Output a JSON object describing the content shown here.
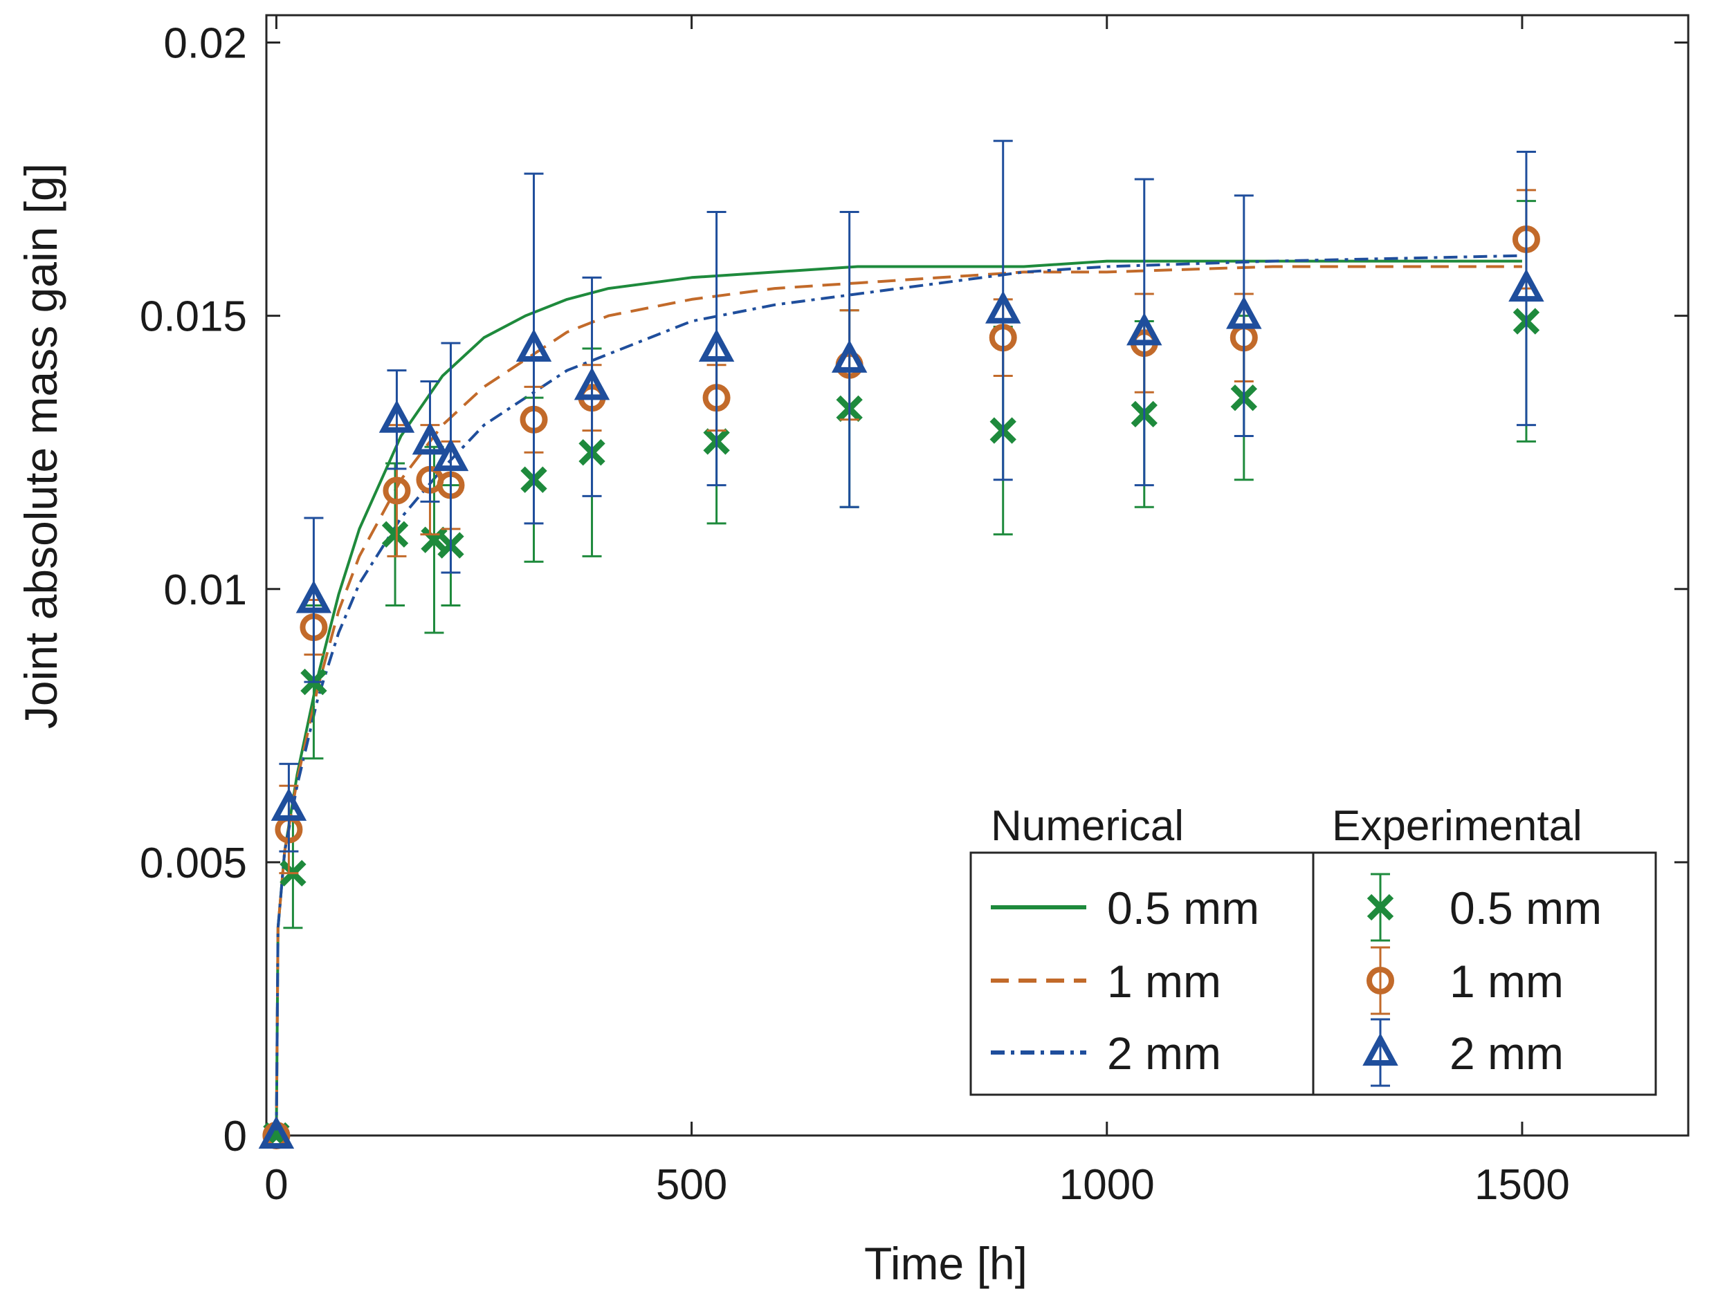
{
  "chart_data": {
    "type": "line",
    "title": "",
    "xlabel": "Time [h]",
    "ylabel": "Joint absolute mass gain [g]",
    "xlim": [
      -12,
      1700
    ],
    "ylim": [
      0,
      0.0205
    ],
    "xticks": [
      0,
      500,
      1000,
      1500
    ],
    "xtick_labels": [
      "0",
      "500",
      "1000",
      "1500"
    ],
    "yticks": [
      0,
      0.005,
      0.01,
      0.015,
      0.02
    ],
    "ytick_labels": [
      "0",
      "0.005",
      "0.01",
      "0.015",
      "0.02"
    ],
    "grid": false,
    "legend": {
      "placement": "bottom-right",
      "numerical_heading": "Numerical",
      "experimental_heading": "Experimental"
    },
    "numerical_series": [
      {
        "name": "0.5 mm",
        "color": "#1e8a3c",
        "dash": "solid",
        "x": [
          0,
          2,
          10,
          25,
          50,
          75,
          100,
          150,
          200,
          250,
          300,
          350,
          400,
          500,
          600,
          700,
          800,
          900,
          1000,
          1200,
          1500
        ],
        "y": [
          0,
          0.0038,
          0.0052,
          0.0066,
          0.0084,
          0.0099,
          0.0111,
          0.0128,
          0.0139,
          0.0146,
          0.015,
          0.0153,
          0.0155,
          0.0157,
          0.0158,
          0.0159,
          0.0159,
          0.0159,
          0.016,
          0.016,
          0.016
        ]
      },
      {
        "name": "1 mm",
        "color": "#c26a2a",
        "dash": "dashed",
        "x": [
          0,
          2,
          10,
          25,
          50,
          75,
          100,
          150,
          200,
          250,
          300,
          350,
          400,
          500,
          600,
          700,
          800,
          900,
          1000,
          1200,
          1500
        ],
        "y": [
          0,
          0.0038,
          0.0052,
          0.0065,
          0.0082,
          0.0096,
          0.0106,
          0.012,
          0.013,
          0.0137,
          0.0142,
          0.0147,
          0.015,
          0.0153,
          0.0155,
          0.0156,
          0.0157,
          0.0158,
          0.0158,
          0.0159,
          0.0159
        ]
      },
      {
        "name": "2 mm",
        "color": "#1f4e9c",
        "dash": "dashdot",
        "x": [
          0,
          2,
          10,
          25,
          50,
          75,
          100,
          150,
          200,
          250,
          300,
          350,
          400,
          500,
          600,
          700,
          800,
          900,
          1000,
          1200,
          1500
        ],
        "y": [
          0,
          0.0038,
          0.0052,
          0.0064,
          0.008,
          0.0092,
          0.0101,
          0.0113,
          0.0122,
          0.013,
          0.0135,
          0.014,
          0.0143,
          0.0149,
          0.0152,
          0.0154,
          0.0156,
          0.0158,
          0.0159,
          0.016,
          0.0161
        ]
      }
    ],
    "experimental_series": [
      {
        "name": "0.5 mm",
        "color": "#1e8a3c",
        "marker": "x",
        "points": [
          {
            "x": 0,
            "y": 0.0,
            "err": 0.0
          },
          {
            "x": 20,
            "y": 0.0048,
            "err": 0.001
          },
          {
            "x": 45,
            "y": 0.0083,
            "err": 0.0014
          },
          {
            "x": 143,
            "y": 0.011,
            "err": 0.0013
          },
          {
            "x": 190,
            "y": 0.0109,
            "err": 0.0017
          },
          {
            "x": 210,
            "y": 0.0108,
            "err": 0.0011
          },
          {
            "x": 310,
            "y": 0.012,
            "err": 0.0015
          },
          {
            "x": 380,
            "y": 0.0125,
            "err": 0.0019
          },
          {
            "x": 530,
            "y": 0.0127,
            "err": 0.0015
          },
          {
            "x": 690,
            "y": 0.0133,
            "err": 0.0018
          },
          {
            "x": 875,
            "y": 0.0129,
            "err": 0.0019
          },
          {
            "x": 1045,
            "y": 0.0132,
            "err": 0.0017
          },
          {
            "x": 1165,
            "y": 0.0135,
            "err": 0.0015
          },
          {
            "x": 1505,
            "y": 0.0149,
            "err": 0.0022
          }
        ]
      },
      {
        "name": "1 mm",
        "color": "#c26a2a",
        "marker": "o",
        "points": [
          {
            "x": 0,
            "y": 0.0,
            "err": 0.0
          },
          {
            "x": 15,
            "y": 0.0056,
            "err": 0.0008
          },
          {
            "x": 45,
            "y": 0.0093,
            "err": 0.0005
          },
          {
            "x": 145,
            "y": 0.0118,
            "err": 0.0012
          },
          {
            "x": 185,
            "y": 0.012,
            "err": 0.001
          },
          {
            "x": 210,
            "y": 0.0119,
            "err": 0.0008
          },
          {
            "x": 310,
            "y": 0.0131,
            "err": 0.0006
          },
          {
            "x": 380,
            "y": 0.0135,
            "err": 0.0006
          },
          {
            "x": 530,
            "y": 0.0135,
            "err": 0.0006
          },
          {
            "x": 690,
            "y": 0.0141,
            "err": 0.001
          },
          {
            "x": 875,
            "y": 0.0146,
            "err": 0.0007
          },
          {
            "x": 1045,
            "y": 0.0145,
            "err": 0.0009
          },
          {
            "x": 1165,
            "y": 0.0146,
            "err": 0.0008
          },
          {
            "x": 1505,
            "y": 0.0164,
            "err": 0.0009
          }
        ]
      },
      {
        "name": "2 mm",
        "color": "#1f4e9c",
        "marker": "^",
        "points": [
          {
            "x": 0,
            "y": 0.0,
            "err": 0.0
          },
          {
            "x": 15,
            "y": 0.006,
            "err": 0.0008
          },
          {
            "x": 45,
            "y": 0.0098,
            "err": 0.0015
          },
          {
            "x": 145,
            "y": 0.0131,
            "err": 0.0009
          },
          {
            "x": 185,
            "y": 0.0127,
            "err": 0.0011
          },
          {
            "x": 210,
            "y": 0.0124,
            "err": 0.0021
          },
          {
            "x": 310,
            "y": 0.0144,
            "err": 0.0032
          },
          {
            "x": 380,
            "y": 0.0137,
            "err": 0.002
          },
          {
            "x": 530,
            "y": 0.0144,
            "err": 0.0025
          },
          {
            "x": 690,
            "y": 0.0142,
            "err": 0.0027
          },
          {
            "x": 875,
            "y": 0.0151,
            "err": 0.0031
          },
          {
            "x": 1045,
            "y": 0.0147,
            "err": 0.0028
          },
          {
            "x": 1165,
            "y": 0.015,
            "err": 0.0022
          },
          {
            "x": 1505,
            "y": 0.0155,
            "err": 0.0025
          }
        ]
      }
    ]
  }
}
